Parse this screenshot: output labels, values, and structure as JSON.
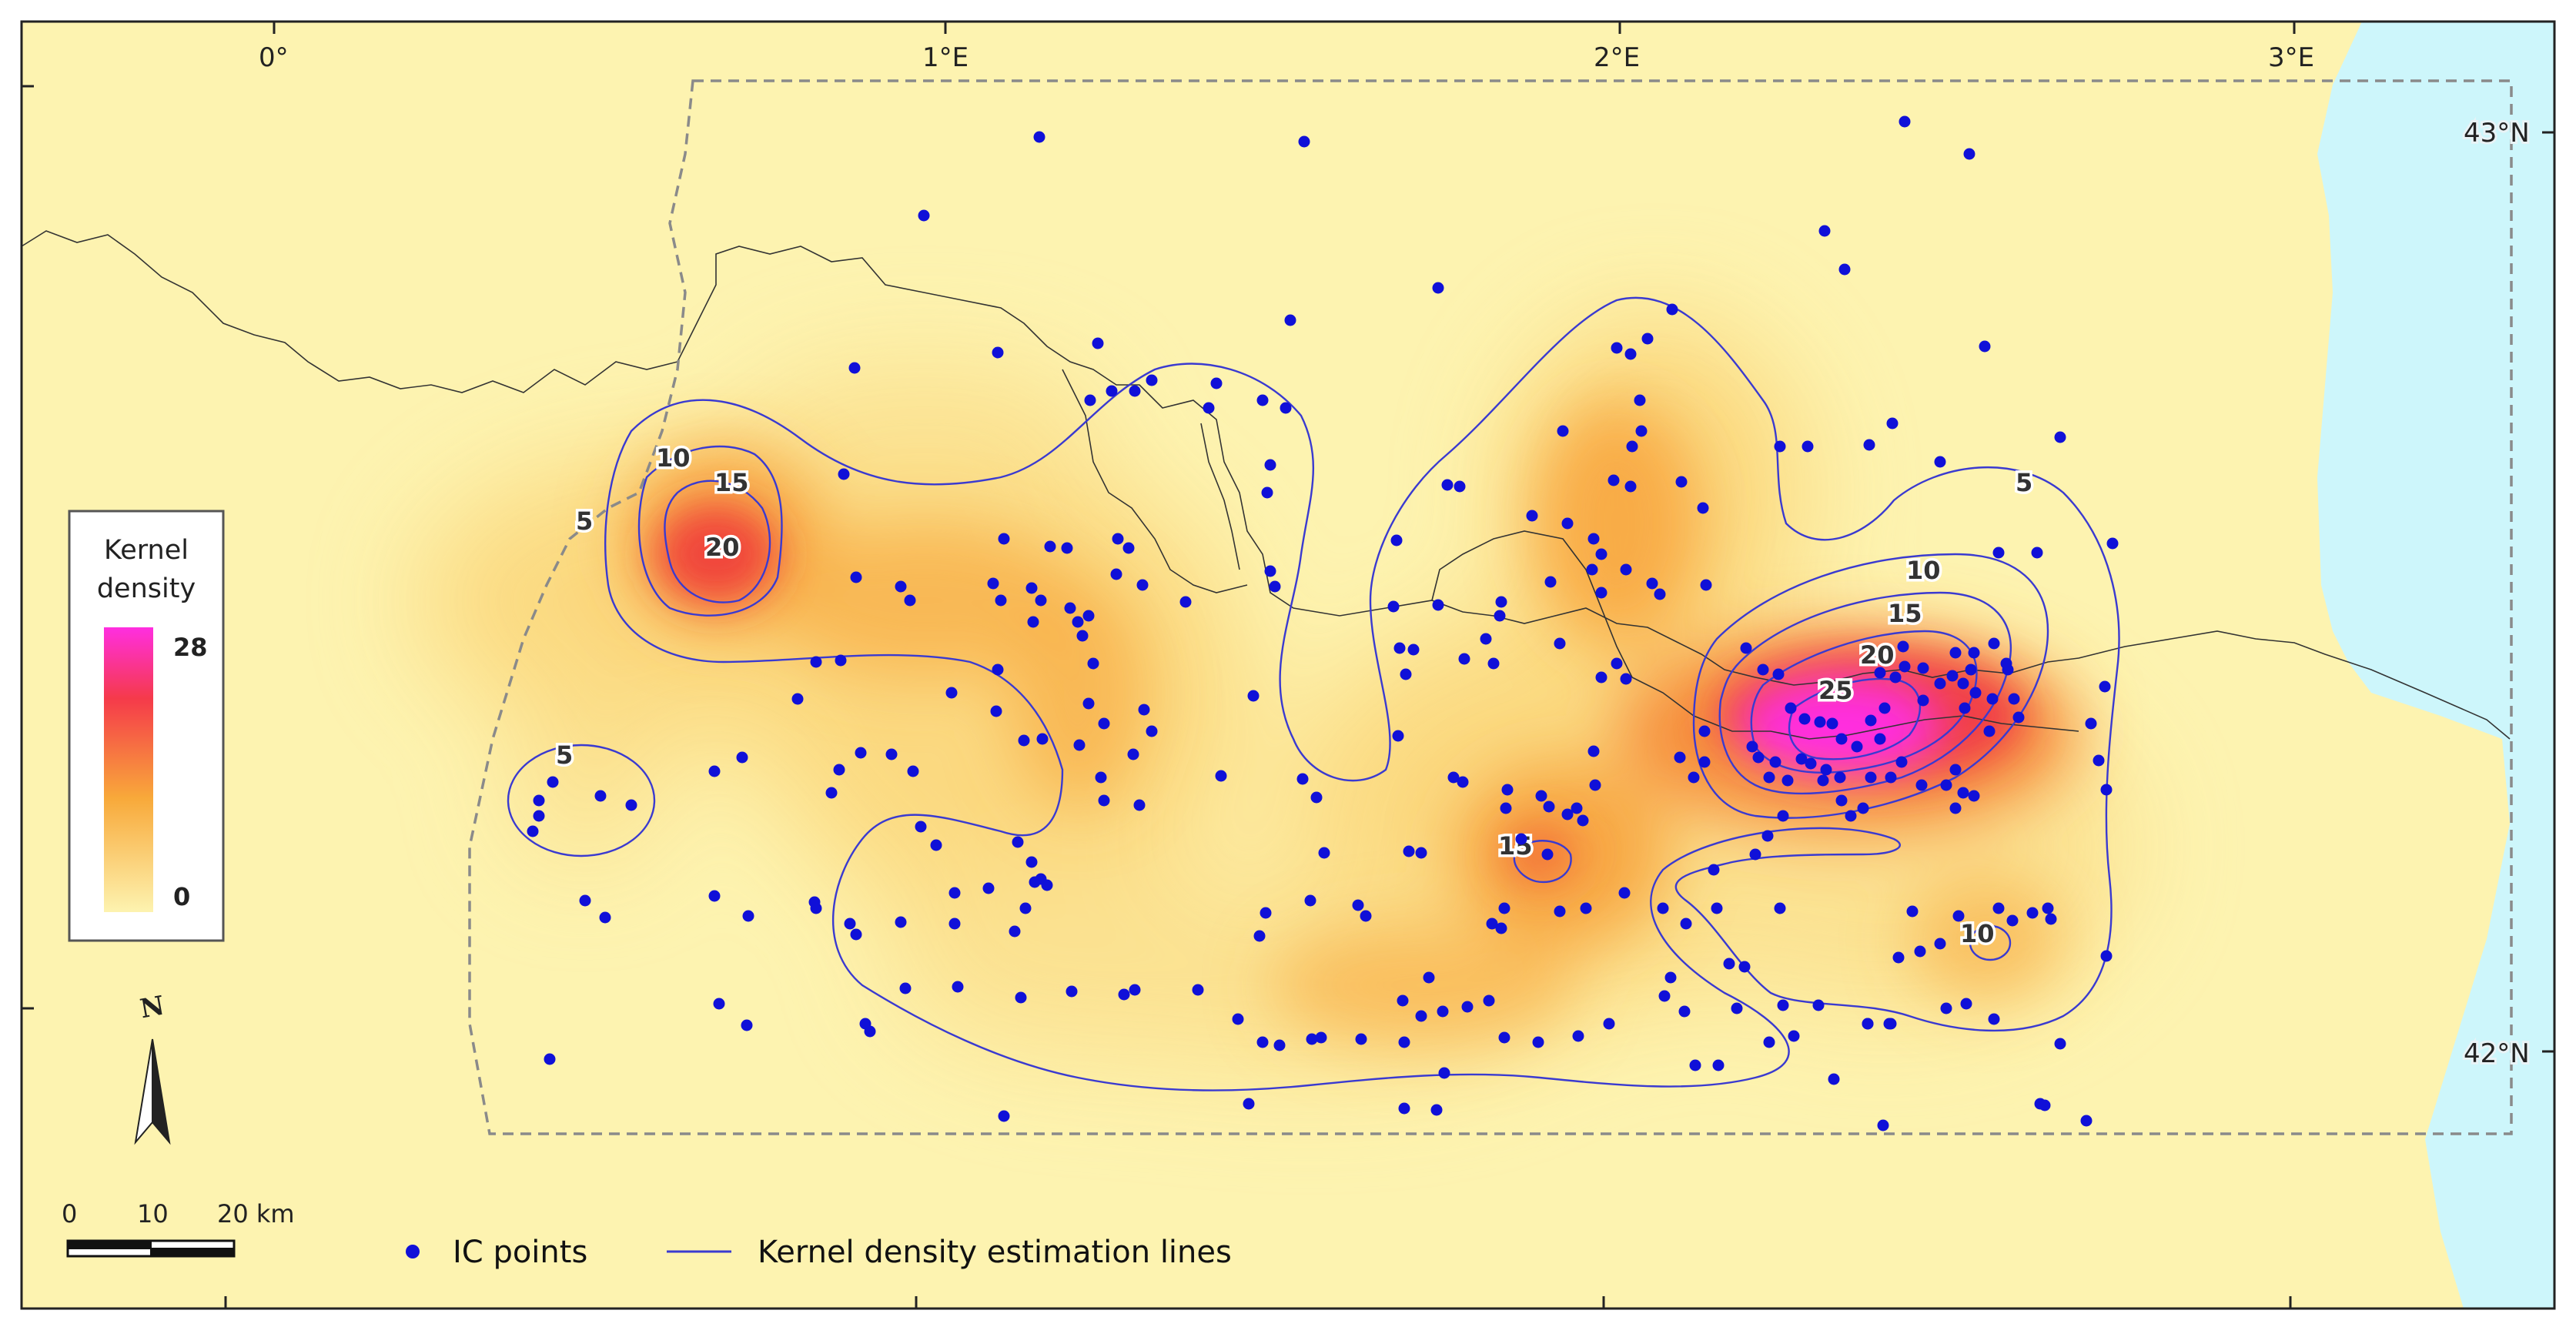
{
  "map": {
    "graticule": {
      "longitudes": [
        "0°",
        "1°E",
        "2°E",
        "3°E"
      ],
      "latitudes": [
        "43°N",
        "42°N"
      ]
    },
    "legend": {
      "title_line1": "Kernel",
      "title_line2": "density",
      "max": "28",
      "min": "0"
    },
    "contour_levels": [
      "5",
      "10",
      "15",
      "20",
      "25"
    ],
    "contour_labels": [
      "5",
      "5",
      "5",
      "10",
      "15",
      "20",
      "10",
      "15",
      "20",
      "25",
      "15",
      "10"
    ],
    "scale_bar": {
      "tick0": "0",
      "tick1": "10",
      "tick2": "20 km"
    },
    "north_arrow": {
      "label": "N"
    },
    "key": {
      "points_label": "IC points",
      "lines_label": "Kernel density estimation lines"
    },
    "colors": {
      "land": "#fdf3b0",
      "sea": "#cdf6fb",
      "density_low": "#fbe79a",
      "density_mid": "#f8a93a",
      "density_high": "#ee3a50",
      "density_peak": "#ff2ee0",
      "contour_line": "#3a3ad0",
      "ic_point": "#1010d8"
    }
  }
}
